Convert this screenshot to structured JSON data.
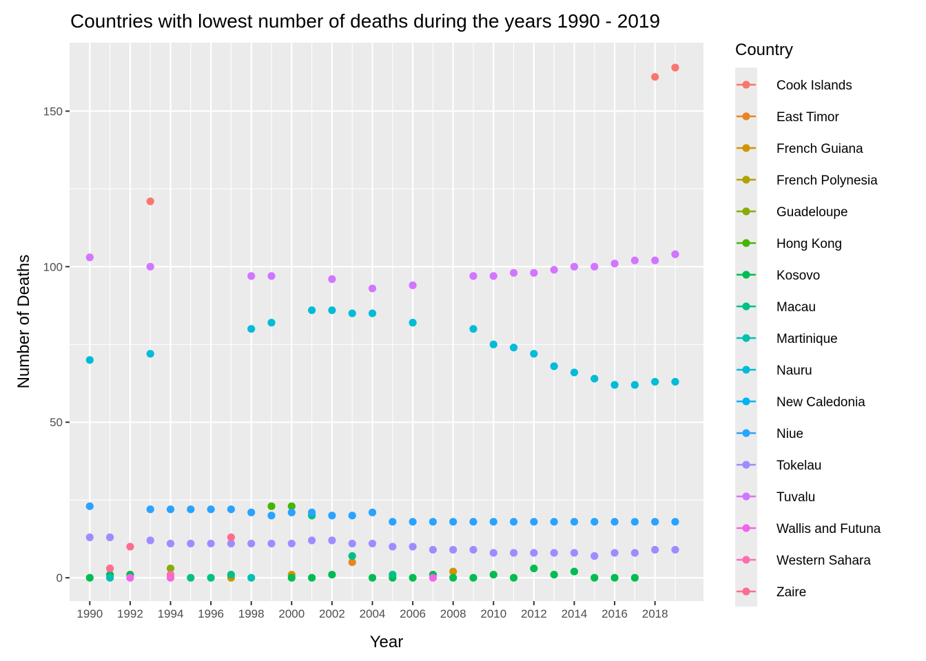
{
  "chart_data": {
    "type": "scatter",
    "title": "Countries with lowest number of deaths during the years 1990 - 2019",
    "xlabel": "Year",
    "ylabel": "Number of Deaths",
    "xlim": [
      1989.0,
      2020.4
    ],
    "ylim": [
      -7.5,
      172
    ],
    "x_ticks": [
      1990,
      1992,
      1994,
      1996,
      1998,
      2000,
      2002,
      2004,
      2006,
      2008,
      2010,
      2012,
      2014,
      2016,
      2018
    ],
    "y_ticks": [
      0,
      50,
      100,
      150
    ],
    "grid": true,
    "legend_title": "Country",
    "legend_position": "right",
    "series": [
      {
        "name": "Cook Islands",
        "color": "#F8766D",
        "points": [
          [
            1993,
            121
          ],
          [
            2018,
            161
          ],
          [
            2019,
            164
          ]
        ]
      },
      {
        "name": "East Timor",
        "color": "#E7851E",
        "points": [
          [
            2003,
            5
          ]
        ]
      },
      {
        "name": "French Guiana",
        "color": "#D09400",
        "points": [
          [
            1997,
            0
          ],
          [
            2000,
            1
          ],
          [
            2008,
            2
          ]
        ]
      },
      {
        "name": "French Polynesia",
        "color": "#B2A100",
        "points": []
      },
      {
        "name": "Guadeloupe",
        "color": "#89AC00",
        "points": [
          [
            1994,
            3
          ]
        ]
      },
      {
        "name": "Hong Kong",
        "color": "#45B500",
        "points": [
          [
            1999,
            23
          ],
          [
            2000,
            23
          ]
        ]
      },
      {
        "name": "Kosovo",
        "color": "#00BC51",
        "points": [
          [
            1990,
            0
          ],
          [
            1991,
            1
          ],
          [
            1992,
            1
          ],
          [
            2000,
            0
          ],
          [
            2001,
            0
          ],
          [
            2002,
            1
          ],
          [
            2004,
            0
          ],
          [
            2005,
            0
          ],
          [
            2006,
            0
          ],
          [
            2007,
            1
          ],
          [
            2008,
            0
          ],
          [
            2009,
            0
          ],
          [
            2010,
            1
          ],
          [
            2011,
            0
          ],
          [
            2012,
            3
          ],
          [
            2013,
            1
          ],
          [
            2014,
            2
          ],
          [
            2015,
            0
          ],
          [
            2016,
            0
          ],
          [
            2017,
            0
          ]
        ]
      },
      {
        "name": "Macau",
        "color": "#00C087",
        "points": [
          [
            1995,
            0
          ],
          [
            1996,
            0
          ],
          [
            1997,
            1
          ],
          [
            2001,
            20
          ],
          [
            2003,
            7
          ],
          [
            2005,
            1
          ]
        ]
      },
      {
        "name": "Martinique",
        "color": "#00C0B2",
        "points": [
          [
            1991,
            0
          ],
          [
            1998,
            0
          ]
        ]
      },
      {
        "name": "Nauru",
        "color": "#00BCD6",
        "points": [
          [
            1990,
            70
          ],
          [
            1993,
            72
          ],
          [
            1998,
            80
          ],
          [
            1999,
            82
          ],
          [
            2001,
            86
          ],
          [
            2002,
            86
          ],
          [
            2003,
            85
          ],
          [
            2004,
            85
          ],
          [
            2006,
            82
          ],
          [
            2009,
            80
          ],
          [
            2010,
            75
          ],
          [
            2011,
            74
          ],
          [
            2012,
            72
          ],
          [
            2013,
            68
          ],
          [
            2014,
            66
          ],
          [
            2015,
            64
          ],
          [
            2016,
            62
          ],
          [
            2017,
            62
          ],
          [
            2018,
            63
          ],
          [
            2019,
            63
          ]
        ]
      },
      {
        "name": "New Caledonia",
        "color": "#00B3F2",
        "points": []
      },
      {
        "name": "Niue",
        "color": "#29A3FF",
        "points": [
          [
            1990,
            23
          ],
          [
            1993,
            22
          ],
          [
            1994,
            22
          ],
          [
            1995,
            22
          ],
          [
            1996,
            22
          ],
          [
            1997,
            22
          ],
          [
            1998,
            21
          ],
          [
            1999,
            20
          ],
          [
            2000,
            21
          ],
          [
            2001,
            21
          ],
          [
            2002,
            20
          ],
          [
            2003,
            20
          ],
          [
            2004,
            21
          ],
          [
            2005,
            18
          ],
          [
            2006,
            18
          ],
          [
            2007,
            18
          ],
          [
            2008,
            18
          ],
          [
            2009,
            18
          ],
          [
            2010,
            18
          ],
          [
            2011,
            18
          ],
          [
            2012,
            18
          ],
          [
            2013,
            18
          ],
          [
            2014,
            18
          ],
          [
            2015,
            18
          ],
          [
            2016,
            18
          ],
          [
            2017,
            18
          ],
          [
            2018,
            18
          ],
          [
            2019,
            18
          ]
        ]
      },
      {
        "name": "Tokelau",
        "color": "#9C8DFF",
        "points": [
          [
            1990,
            13
          ],
          [
            1991,
            13
          ],
          [
            1993,
            12
          ],
          [
            1994,
            11
          ],
          [
            1995,
            11
          ],
          [
            1996,
            11
          ],
          [
            1997,
            11
          ],
          [
            1998,
            11
          ],
          [
            1999,
            11
          ],
          [
            2000,
            11
          ],
          [
            2001,
            12
          ],
          [
            2002,
            12
          ],
          [
            2003,
            11
          ],
          [
            2004,
            11
          ],
          [
            2005,
            10
          ],
          [
            2006,
            10
          ],
          [
            2007,
            9
          ],
          [
            2008,
            9
          ],
          [
            2009,
            9
          ],
          [
            2010,
            8
          ],
          [
            2011,
            8
          ],
          [
            2012,
            8
          ],
          [
            2013,
            8
          ],
          [
            2014,
            8
          ],
          [
            2015,
            7
          ],
          [
            2016,
            8
          ],
          [
            2017,
            8
          ],
          [
            2018,
            9
          ],
          [
            2019,
            9
          ]
        ]
      },
      {
        "name": "Tuvalu",
        "color": "#D275FF",
        "points": [
          [
            1990,
            103
          ],
          [
            1993,
            100
          ],
          [
            1998,
            97
          ],
          [
            1999,
            97
          ],
          [
            2002,
            96
          ],
          [
            2004,
            93
          ],
          [
            2006,
            94
          ],
          [
            2009,
            97
          ],
          [
            2010,
            97
          ],
          [
            2011,
            98
          ],
          [
            2012,
            98
          ],
          [
            2013,
            99
          ],
          [
            2014,
            100
          ],
          [
            2015,
            100
          ],
          [
            2016,
            101
          ],
          [
            2017,
            102
          ],
          [
            2018,
            102
          ],
          [
            2019,
            104
          ]
        ]
      },
      {
        "name": "Wallis and Futuna",
        "color": "#F066EA",
        "points": [
          [
            1992,
            0
          ],
          [
            1994,
            0
          ],
          [
            2007,
            0
          ]
        ]
      },
      {
        "name": "Western Sahara",
        "color": "#FE6DB4",
        "points": [
          [
            1994,
            1
          ]
        ]
      },
      {
        "name": "Zaire",
        "color": "#FF6C91",
        "points": [
          [
            1991,
            3
          ],
          [
            1992,
            10
          ],
          [
            1997,
            13
          ]
        ]
      }
    ]
  }
}
